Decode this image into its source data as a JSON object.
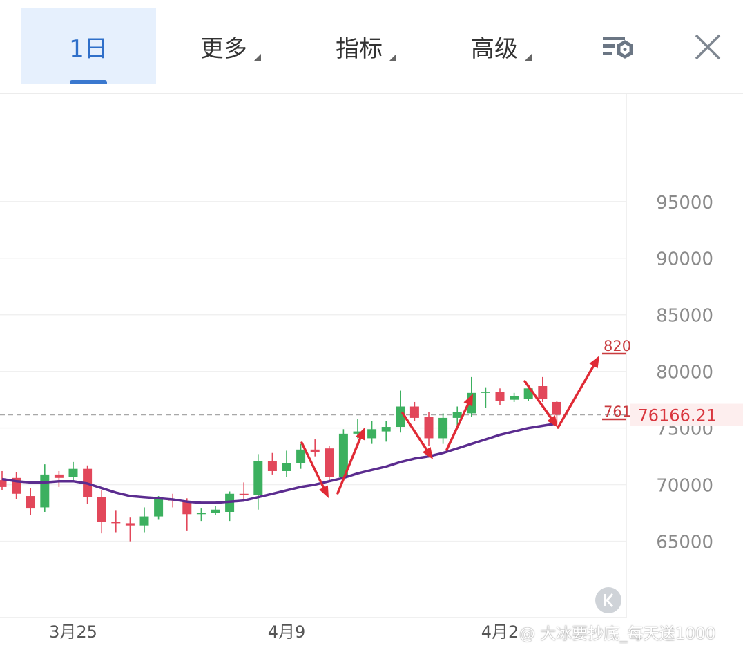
{
  "tabs": [
    {
      "label": "1日",
      "active": true
    },
    {
      "label": "更多",
      "dropdown": true
    },
    {
      "label": "指标",
      "dropdown": true
    },
    {
      "label": "高级",
      "dropdown": true
    }
  ],
  "icons": {
    "settings": "list-settings-icon",
    "close": "close-icon",
    "collapse": "collapse-left-icon"
  },
  "watermark": "@ 大冰要抄底_每天送1000",
  "colors": {
    "up": "#3cb05f",
    "down": "#e2475a",
    "ma": "#5b2c8f",
    "arrow": "#e02a35",
    "accent": "#2f6fc9"
  },
  "chart_data": {
    "type": "candlestick",
    "y_ticks": [
      95000,
      90000,
      85000,
      80000,
      75000,
      70000,
      65000
    ],
    "x_ticks": [
      "3月25",
      "4月9",
      "4月2"
    ],
    "current_price": "76166.21",
    "price_label_tags": [
      "820",
      "761"
    ],
    "ylim": [
      59000,
      104500
    ],
    "candles": [
      {
        "o": 70400,
        "c": 69800,
        "h": 71200,
        "l": 69500
      },
      {
        "o": 70600,
        "c": 69200,
        "h": 71100,
        "l": 68700
      },
      {
        "o": 69000,
        "c": 67900,
        "h": 69700,
        "l": 67300
      },
      {
        "o": 68000,
        "c": 70900,
        "h": 71800,
        "l": 67600
      },
      {
        "o": 70900,
        "c": 70600,
        "h": 71200,
        "l": 69800
      },
      {
        "o": 70700,
        "c": 71400,
        "h": 72000,
        "l": 70300
      },
      {
        "o": 71400,
        "c": 68900,
        "h": 71700,
        "l": 68300
      },
      {
        "o": 68900,
        "c": 66700,
        "h": 69500,
        "l": 65700
      },
      {
        "o": 66700,
        "c": 66600,
        "h": 67700,
        "l": 65800
      },
      {
        "o": 66600,
        "c": 66400,
        "h": 67100,
        "l": 65000
      },
      {
        "o": 66400,
        "c": 67200,
        "h": 68000,
        "l": 65800
      },
      {
        "o": 67200,
        "c": 68700,
        "h": 69000,
        "l": 66900
      },
      {
        "o": 68700,
        "c": 68600,
        "h": 69200,
        "l": 68000
      },
      {
        "o": 68500,
        "c": 67400,
        "h": 68800,
        "l": 65900
      },
      {
        "o": 67400,
        "c": 67500,
        "h": 67900,
        "l": 66800
      },
      {
        "o": 67500,
        "c": 67800,
        "h": 68100,
        "l": 67300
      },
      {
        "o": 67600,
        "c": 69200,
        "h": 69400,
        "l": 66800
      },
      {
        "o": 69200,
        "c": 69100,
        "h": 70200,
        "l": 68600
      },
      {
        "o": 69100,
        "c": 72100,
        "h": 72700,
        "l": 67800
      },
      {
        "o": 72100,
        "c": 71200,
        "h": 72800,
        "l": 70900
      },
      {
        "o": 71200,
        "c": 71900,
        "h": 73000,
        "l": 70700
      },
      {
        "o": 71900,
        "c": 73100,
        "h": 73600,
        "l": 71400
      },
      {
        "o": 73100,
        "c": 72900,
        "h": 74000,
        "l": 72500
      },
      {
        "o": 73200,
        "c": 70700,
        "h": 73400,
        "l": 70300
      },
      {
        "o": 70700,
        "c": 74500,
        "h": 74900,
        "l": 70400
      },
      {
        "o": 74500,
        "c": 74700,
        "h": 75800,
        "l": 74100
      },
      {
        "o": 74100,
        "c": 74900,
        "h": 75600,
        "l": 73600
      },
      {
        "o": 74700,
        "c": 75100,
        "h": 75600,
        "l": 73800
      },
      {
        "o": 75100,
        "c": 76900,
        "h": 78300,
        "l": 74600
      },
      {
        "o": 76900,
        "c": 75900,
        "h": 77300,
        "l": 75600
      },
      {
        "o": 76000,
        "c": 74100,
        "h": 76400,
        "l": 73400
      },
      {
        "o": 74100,
        "c": 75900,
        "h": 76300,
        "l": 73600
      },
      {
        "o": 75900,
        "c": 76400,
        "h": 76900,
        "l": 75100
      },
      {
        "o": 76300,
        "c": 78100,
        "h": 79500,
        "l": 76000
      },
      {
        "o": 78100,
        "c": 78200,
        "h": 78600,
        "l": 76800
      },
      {
        "o": 78200,
        "c": 77400,
        "h": 78500,
        "l": 77000
      },
      {
        "o": 77500,
        "c": 77800,
        "h": 78100,
        "l": 77300
      },
      {
        "o": 77600,
        "c": 78500,
        "h": 78700,
        "l": 77400
      },
      {
        "o": 78700,
        "c": 77600,
        "h": 79500,
        "l": 77300
      },
      {
        "o": 77300,
        "c": 76166,
        "h": 77400,
        "l": 75300
      }
    ],
    "ma": [
      70500,
      70300,
      70200,
      70200,
      70300,
      70300,
      70100,
      69700,
      69300,
      69000,
      68900,
      68800,
      68700,
      68500,
      68400,
      68400,
      68500,
      68600,
      68900,
      69200,
      69500,
      69800,
      70000,
      70300,
      70600,
      71000,
      71300,
      71600,
      72000,
      72300,
      72500,
      72800,
      73200,
      73600,
      74000,
      74400,
      74700,
      75000,
      75200,
      75400
    ]
  }
}
